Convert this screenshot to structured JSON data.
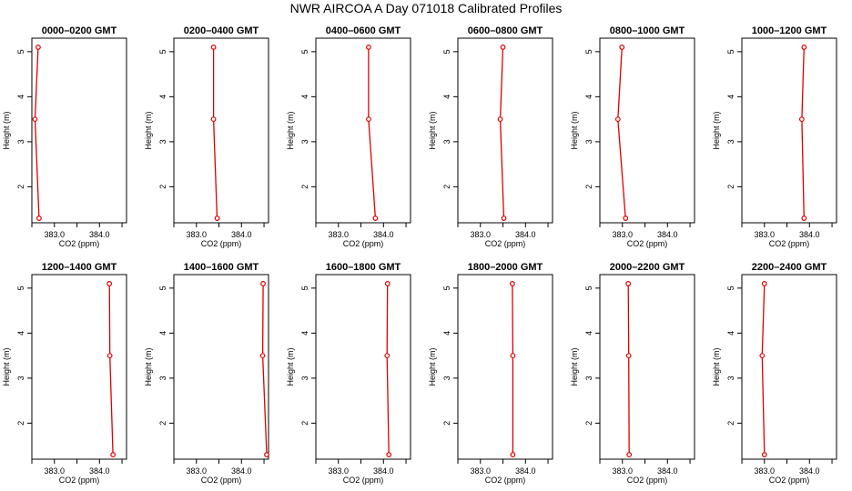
{
  "title": "NWR AIRCOA A  Day 071018  Calibrated Profiles",
  "colors": {
    "line": "#dd0000",
    "axis": "#000000"
  },
  "chart_data": [
    {
      "type": "line",
      "title": "0000–0200 GMT",
      "xlabel": "CO2 (ppm)",
      "ylabel": "Height (m)",
      "xlim": [
        382.5,
        384.6
      ],
      "ylim": [
        1.2,
        5.3
      ],
      "xticks": [
        382.5,
        383.0,
        383.5,
        384.0,
        384.5
      ],
      "xtick_labels": [
        "",
        "383.0",
        "",
        "384.0",
        ""
      ],
      "yticks": [
        2,
        3,
        4,
        5
      ],
      "ytick_labels": [
        "2",
        "3",
        "4",
        "5"
      ],
      "grid": false,
      "series": [
        {
          "x": [
            382.64,
            382.57,
            382.66
          ],
          "y": [
            5.1,
            3.5,
            1.3
          ]
        }
      ]
    },
    {
      "type": "line",
      "title": "0200–0400 GMT",
      "xlabel": "CO2 (ppm)",
      "ylabel": "Height (m)",
      "xlim": [
        382.5,
        384.6
      ],
      "ylim": [
        1.2,
        5.3
      ],
      "xticks": [
        382.5,
        383.0,
        383.5,
        384.0,
        384.5
      ],
      "xtick_labels": [
        "",
        "383.0",
        "",
        "384.0",
        ""
      ],
      "yticks": [
        2,
        3,
        4,
        5
      ],
      "ytick_labels": [
        "2",
        "3",
        "4",
        "5"
      ],
      "grid": false,
      "series": [
        {
          "x": [
            383.38,
            383.38,
            383.46
          ],
          "y": [
            5.1,
            3.5,
            1.3
          ]
        }
      ]
    },
    {
      "type": "line",
      "title": "0400–0600 GMT",
      "xlabel": "CO2 (ppm)",
      "ylabel": "Height (m)",
      "xlim": [
        382.5,
        384.6
      ],
      "ylim": [
        1.2,
        5.3
      ],
      "xticks": [
        382.5,
        383.0,
        383.5,
        384.0,
        384.5
      ],
      "xtick_labels": [
        "",
        "383.0",
        "",
        "384.0",
        ""
      ],
      "yticks": [
        2,
        3,
        4,
        5
      ],
      "ytick_labels": [
        "2",
        "3",
        "4",
        "5"
      ],
      "grid": false,
      "series": [
        {
          "x": [
            383.67,
            383.67,
            383.82
          ],
          "y": [
            5.1,
            3.5,
            1.3
          ]
        }
      ]
    },
    {
      "type": "line",
      "title": "0600–0800 GMT",
      "xlabel": "CO2 (ppm)",
      "ylabel": "Height (m)",
      "xlim": [
        382.5,
        384.6
      ],
      "ylim": [
        1.2,
        5.3
      ],
      "xticks": [
        382.5,
        383.0,
        383.5,
        384.0,
        384.5
      ],
      "xtick_labels": [
        "",
        "383.0",
        "",
        "384.0",
        ""
      ],
      "yticks": [
        2,
        3,
        4,
        5
      ],
      "ytick_labels": [
        "2",
        "3",
        "4",
        "5"
      ],
      "grid": false,
      "series": [
        {
          "x": [
            383.5,
            383.44,
            383.52
          ],
          "y": [
            5.1,
            3.5,
            1.3
          ]
        }
      ]
    },
    {
      "type": "line",
      "title": "0800–1000 GMT",
      "xlabel": "CO2 (ppm)",
      "ylabel": "Height (m)",
      "xlim": [
        382.5,
        384.6
      ],
      "ylim": [
        1.2,
        5.3
      ],
      "xticks": [
        382.5,
        383.0,
        383.5,
        384.0,
        384.5
      ],
      "xtick_labels": [
        "",
        "383.0",
        "",
        "384.0",
        ""
      ],
      "yticks": [
        2,
        3,
        4,
        5
      ],
      "ytick_labels": [
        "2",
        "3",
        "4",
        "5"
      ],
      "grid": false,
      "series": [
        {
          "x": [
            382.99,
            382.9,
            383.07
          ],
          "y": [
            5.1,
            3.5,
            1.3
          ]
        }
      ]
    },
    {
      "type": "line",
      "title": "1000–1200 GMT",
      "xlabel": "CO2 (ppm)",
      "ylabel": "Height (m)",
      "xlim": [
        382.5,
        384.6
      ],
      "ylim": [
        1.2,
        5.3
      ],
      "xticks": [
        382.5,
        383.0,
        383.5,
        384.0,
        384.5
      ],
      "xtick_labels": [
        "",
        "383.0",
        "",
        "384.0",
        ""
      ],
      "yticks": [
        2,
        3,
        4,
        5
      ],
      "ytick_labels": [
        "2",
        "3",
        "4",
        "5"
      ],
      "grid": false,
      "series": [
        {
          "x": [
            383.88,
            383.83,
            383.88
          ],
          "y": [
            5.1,
            3.5,
            1.3
          ]
        }
      ]
    },
    {
      "type": "line",
      "title": "1200–1400 GMT",
      "xlabel": "CO2 (ppm)",
      "ylabel": "Height (m)",
      "xlim": [
        382.5,
        384.6
      ],
      "ylim": [
        1.2,
        5.3
      ],
      "xticks": [
        382.5,
        383.0,
        383.5,
        384.0,
        384.5
      ],
      "xtick_labels": [
        "",
        "383.0",
        "",
        "384.0",
        ""
      ],
      "yticks": [
        2,
        3,
        4,
        5
      ],
      "ytick_labels": [
        "2",
        "3",
        "4",
        "5"
      ],
      "grid": false,
      "series": [
        {
          "x": [
            384.22,
            384.23,
            384.3
          ],
          "y": [
            5.1,
            3.5,
            1.3
          ]
        }
      ]
    },
    {
      "type": "line",
      "title": "1400–1600 GMT",
      "xlabel": "CO2 (ppm)",
      "ylabel": "Height (m)",
      "xlim": [
        382.5,
        384.6
      ],
      "ylim": [
        1.2,
        5.3
      ],
      "xticks": [
        382.5,
        383.0,
        383.5,
        384.0,
        384.5
      ],
      "xtick_labels": [
        "",
        "383.0",
        "",
        "384.0",
        ""
      ],
      "yticks": [
        2,
        3,
        4,
        5
      ],
      "ytick_labels": [
        "2",
        "3",
        "4",
        "5"
      ],
      "grid": false,
      "series": [
        {
          "x": [
            384.48,
            384.47,
            384.56
          ],
          "y": [
            5.1,
            3.5,
            1.3
          ]
        }
      ]
    },
    {
      "type": "line",
      "title": "1600–1800 GMT",
      "xlabel": "CO2 (ppm)",
      "ylabel": "Height (m)",
      "xlim": [
        382.5,
        384.6
      ],
      "ylim": [
        1.2,
        5.3
      ],
      "xticks": [
        382.5,
        383.0,
        383.5,
        384.0,
        384.5
      ],
      "xtick_labels": [
        "",
        "383.0",
        "",
        "384.0",
        ""
      ],
      "yticks": [
        2,
        3,
        4,
        5
      ],
      "ytick_labels": [
        "2",
        "3",
        "4",
        "5"
      ],
      "grid": false,
      "series": [
        {
          "x": [
            384.09,
            384.08,
            384.12
          ],
          "y": [
            5.1,
            3.5,
            1.3
          ]
        }
      ]
    },
    {
      "type": "line",
      "title": "1800–2000 GMT",
      "xlabel": "CO2 (ppm)",
      "ylabel": "Height (m)",
      "xlim": [
        382.5,
        384.6
      ],
      "ylim": [
        1.2,
        5.3
      ],
      "xticks": [
        382.5,
        383.0,
        383.5,
        384.0,
        384.5
      ],
      "xtick_labels": [
        "",
        "383.0",
        "",
        "384.0",
        ""
      ],
      "yticks": [
        2,
        3,
        4,
        5
      ],
      "ytick_labels": [
        "2",
        "3",
        "4",
        "5"
      ],
      "grid": false,
      "series": [
        {
          "x": [
            383.71,
            383.72,
            383.72
          ],
          "y": [
            5.1,
            3.5,
            1.3
          ]
        }
      ]
    },
    {
      "type": "line",
      "title": "2000–2200 GMT",
      "xlabel": "CO2 (ppm)",
      "ylabel": "Height (m)",
      "xlim": [
        382.5,
        384.6
      ],
      "ylim": [
        1.2,
        5.3
      ],
      "xticks": [
        382.5,
        383.0,
        383.5,
        384.0,
        384.5
      ],
      "xtick_labels": [
        "",
        "383.0",
        "",
        "384.0",
        ""
      ],
      "yticks": [
        2,
        3,
        4,
        5
      ],
      "ytick_labels": [
        "2",
        "3",
        "4",
        "5"
      ],
      "grid": false,
      "series": [
        {
          "x": [
            383.13,
            383.14,
            383.15
          ],
          "y": [
            5.1,
            3.5,
            1.3
          ]
        }
      ]
    },
    {
      "type": "line",
      "title": "2200–2400 GMT",
      "xlabel": "CO2 (ppm)",
      "ylabel": "Height (m)",
      "xlim": [
        382.5,
        384.6
      ],
      "ylim": [
        1.2,
        5.3
      ],
      "xticks": [
        382.5,
        383.0,
        383.5,
        384.0,
        384.5
      ],
      "xtick_labels": [
        "",
        "383.0",
        "",
        "384.0",
        ""
      ],
      "yticks": [
        2,
        3,
        4,
        5
      ],
      "ytick_labels": [
        "2",
        "3",
        "4",
        "5"
      ],
      "grid": false,
      "series": [
        {
          "x": [
            383.0,
            382.95,
            383.0
          ],
          "y": [
            5.1,
            3.5,
            1.3
          ]
        }
      ]
    }
  ]
}
